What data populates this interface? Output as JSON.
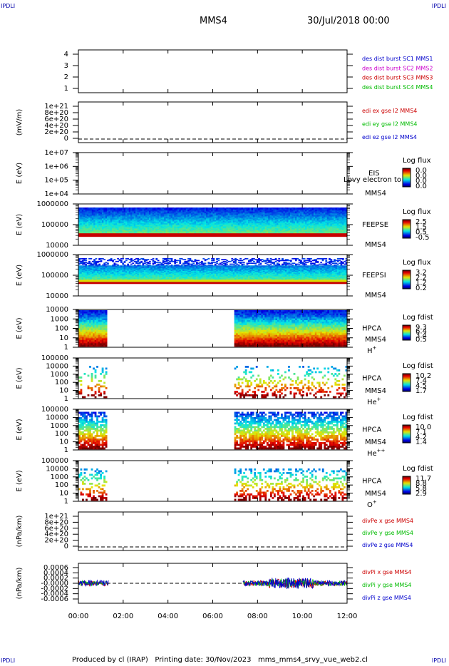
{
  "corner_label": "IPDLI",
  "header": {
    "spacecraft": "MMS4",
    "datetime": "30/Jul/2018 00:00"
  },
  "footer": {
    "text": "Produced by cl (IRAP)   Printing date: 30/Nov/2023   mms_mms4_srvy_vue_web2.cl"
  },
  "colors": {
    "blue": "#0000cc",
    "magenta": "#cc00cc",
    "red": "#cc0000",
    "green": "#00bb00"
  },
  "chart_data": [
    {
      "type": "line",
      "panel": "des-dist-burst",
      "ylabel": "",
      "yticks": [
        "4",
        "3",
        "2",
        "1"
      ],
      "ylim": [
        0.5,
        4.5
      ],
      "legend": [
        {
          "name": "des dist burst SC1 MMS1",
          "color": "#0000cc"
        },
        {
          "name": "des dist burst SC2 MMS2",
          "color": "#cc00cc"
        },
        {
          "name": "des dist burst SC3 MMS3",
          "color": "#cc0000"
        },
        {
          "name": "des dist burst SC4 MMS4",
          "color": "#00bb00"
        }
      ]
    },
    {
      "type": "line",
      "panel": "edi-e",
      "ylabel": "(mV/m)",
      "yticks": [
        "1e+21",
        "8e+20",
        "6e+20",
        "4e+20",
        "2e+20",
        "0"
      ],
      "legend": [
        {
          "name": "edi ex gse l2 MMS4",
          "color": "#cc0000"
        },
        {
          "name": "edi ey gse l2 MMS4",
          "color": "#00bb00"
        },
        {
          "name": "edi ez gse l2 MMS4",
          "color": "#0000cc"
        }
      ]
    },
    {
      "type": "heatmap",
      "panel": "eis",
      "ylabel": "E (eV)",
      "yticks": [
        "1e+07",
        "1e+06",
        "1e+05",
        "1e+04"
      ],
      "instrument": [
        "EIS",
        "MMS4"
      ],
      "overlay": "Lbvy electron to",
      "cbar_title": "Log flux",
      "cbar_ticks": [
        "0.0",
        "0.0",
        "0.0",
        "0.0"
      ]
    },
    {
      "type": "heatmap",
      "panel": "feeps-e",
      "ylabel": "E (eV)",
      "yticks": [
        "1000000",
        "100000",
        "10000"
      ],
      "instrument": [
        "FEEPSE",
        "MMS4"
      ],
      "cbar_title": "Log flux",
      "cbar_ticks": [
        "2.5",
        "1.5",
        "0.5",
        "-0.5"
      ]
    },
    {
      "type": "heatmap",
      "panel": "feeps-i",
      "ylabel": "E (eV)",
      "yticks": [
        "1000000",
        "100000",
        "10000"
      ],
      "instrument": [
        "FEEPSI",
        "MMS4"
      ],
      "cbar_title": "Log flux",
      "cbar_ticks": [
        "3.2",
        "2.2",
        "1.2",
        "0.2"
      ]
    },
    {
      "type": "heatmap",
      "panel": "hpca-h",
      "ylabel": "E (eV)",
      "yticks": [
        "10000",
        "1000",
        "100",
        "10",
        "1"
      ],
      "instrument": [
        "HPCA",
        "MMS4"
      ],
      "species": "H",
      "charge": "+",
      "cbar_title": "Log fdist",
      "cbar_ticks": [
        "9.3",
        "6.4",
        "3.4",
        "0.5"
      ]
    },
    {
      "type": "heatmap",
      "panel": "hpca-he",
      "ylabel": "E (eV)",
      "yticks": [
        "100000",
        "10000",
        "1000",
        "100",
        "10",
        "1"
      ],
      "instrument": [
        "HPCA",
        "MMS4"
      ],
      "species": "He",
      "charge": "+",
      "cbar_title": "Log fdist",
      "cbar_ticks": [
        "10.2",
        "7.4",
        "4.5",
        "1.7"
      ]
    },
    {
      "type": "heatmap",
      "panel": "hpca-he2",
      "ylabel": "E (eV)",
      "yticks": [
        "100000",
        "10000",
        "1000",
        "100",
        "10",
        "1"
      ],
      "instrument": [
        "HPCA",
        "MMS4"
      ],
      "species": "He",
      "charge": "++",
      "cbar_title": "Log fdist",
      "cbar_ticks": [
        "10.0",
        "7.1",
        "4.2",
        "1.4"
      ]
    },
    {
      "type": "heatmap",
      "panel": "hpca-o",
      "ylabel": "E (eV)",
      "yticks": [
        "100000",
        "10000",
        "1000",
        "100",
        "10",
        "1"
      ],
      "instrument": [
        "HPCA",
        "MMS4"
      ],
      "species": "O",
      "charge": "+",
      "cbar_title": "Log fdist",
      "cbar_ticks": [
        "11.7",
        "8.8",
        "5.8",
        "2.9"
      ]
    },
    {
      "type": "line",
      "panel": "divpe",
      "ylabel": "(nPa/km)",
      "yticks": [
        "1e+21",
        "8e+20",
        "6e+20",
        "4e+20",
        "2e+20",
        "0"
      ],
      "legend": [
        {
          "name": "divPe x gse MMS4",
          "color": "#cc0000"
        },
        {
          "name": "divPe y gse MMS4",
          "color": "#00bb00"
        },
        {
          "name": "divPe z gse MMS4",
          "color": "#0000cc"
        }
      ]
    },
    {
      "type": "line",
      "panel": "divpi",
      "ylabel": "(nPa/km)",
      "yticks": [
        "0.0006",
        "0.0004",
        "0.0002",
        "-0.0000",
        "-0.0002",
        "-0.0004",
        "-0.0006"
      ],
      "legend": [
        {
          "name": "divPi x gse MMS4",
          "color": "#cc0000"
        },
        {
          "name": "divPi y gse MMS4",
          "color": "#00bb00"
        },
        {
          "name": "divPi z gse MMS4",
          "color": "#0000cc"
        }
      ]
    }
  ],
  "x_axis": {
    "ticks": [
      "00:00",
      "02:00",
      "04:00",
      "06:00",
      "08:00",
      "10:00",
      "12:00"
    ],
    "xlim_hours": [
      0,
      12
    ],
    "data_intervals_hours": [
      [
        0,
        1.3
      ],
      [
        7.0,
        12.0
      ]
    ],
    "divpi_intervals_hours": [
      [
        0,
        1.35
      ],
      [
        7.35,
        12.0
      ]
    ]
  }
}
